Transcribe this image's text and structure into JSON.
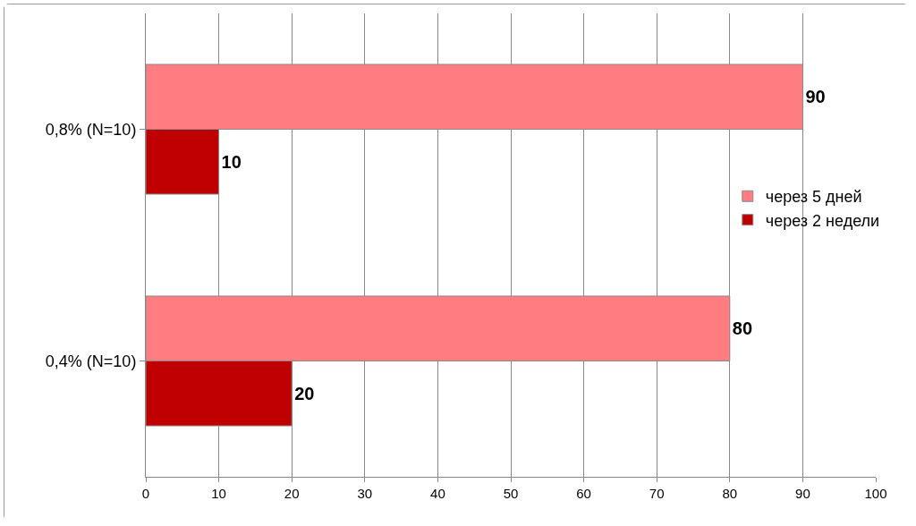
{
  "chart_data": {
    "type": "bar",
    "orientation": "horizontal",
    "categories": [
      "0,8% (N=10)",
      "0,4% (N=10)"
    ],
    "series": [
      {
        "name": "через 5 дней",
        "color": "#ff7c80",
        "values": [
          90,
          80
        ]
      },
      {
        "name": "через 2 недели",
        "color": "#c00000",
        "values": [
          10,
          20
        ]
      }
    ],
    "xlim": [
      0,
      100
    ],
    "xticks": [
      0,
      10,
      20,
      30,
      40,
      50,
      60,
      70,
      80,
      90,
      100
    ],
    "grid": "x",
    "legend": "right",
    "data_labels": true
  }
}
